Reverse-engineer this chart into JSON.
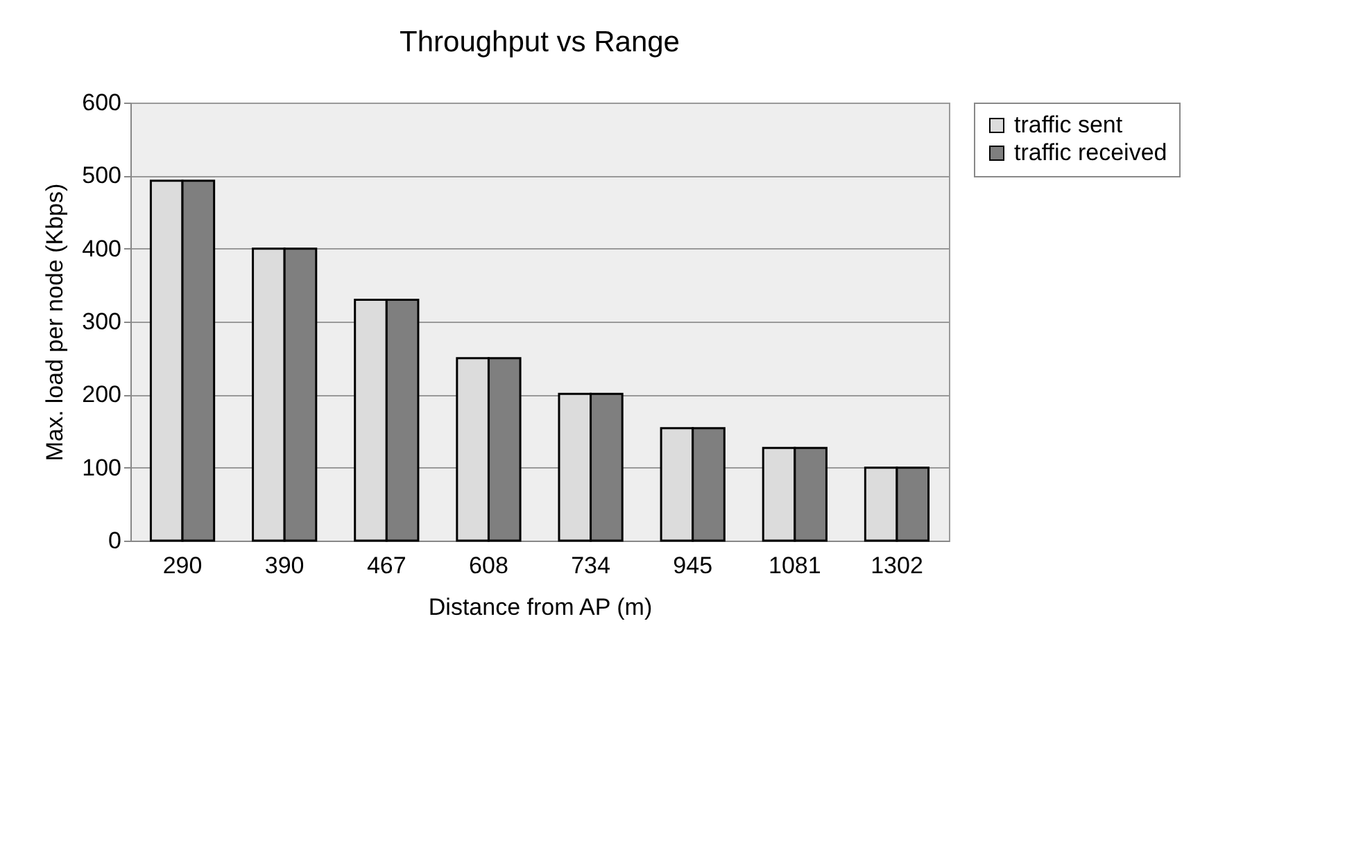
{
  "chart_data": {
    "type": "bar",
    "title": "Throughput vs Range",
    "xlabel": "Distance from AP (m)",
    "ylabel": "Max. load per node (Kbps)",
    "categories": [
      "290",
      "390",
      "467",
      "608",
      "734",
      "945",
      "1081",
      "1302"
    ],
    "series": [
      {
        "name": "traffic sent",
        "color": "#dcdcdc",
        "values": [
          493,
          400,
          330,
          250,
          201,
          154,
          127,
          100
        ]
      },
      {
        "name": "traffic received",
        "color": "#7f7f7f",
        "values": [
          493,
          400,
          330,
          250,
          201,
          154,
          127,
          100
        ]
      }
    ],
    "ylim": [
      0,
      600
    ],
    "yticks": [
      0,
      100,
      200,
      300,
      400,
      500,
      600
    ],
    "grid": "y",
    "legend": "right"
  }
}
